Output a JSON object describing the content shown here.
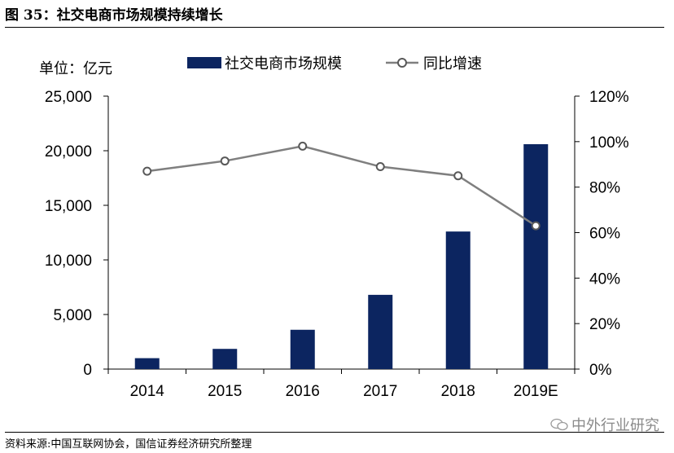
{
  "figure": {
    "title": "图 35：社交电商市场规模持续增长",
    "source": "资料来源:中国互联网协会，国信证券经济研究所整理",
    "watermark": "中外行业研究"
  },
  "chart_data": {
    "type": "bar",
    "title": "",
    "unit_label": "单位：亿元",
    "categories": [
      "2014",
      "2015",
      "2016",
      "2017",
      "2018",
      "2019E"
    ],
    "series": [
      {
        "name": "社交电商市场规模",
        "type": "bar",
        "axis": "left",
        "color": "#0c2560",
        "values": [
          1000,
          1850,
          3600,
          6800,
          12600,
          20600
        ]
      },
      {
        "name": "同比增速",
        "type": "line",
        "axis": "right",
        "color": "#7f7f7f",
        "values": [
          87,
          91.5,
          98,
          89,
          85,
          63
        ]
      }
    ],
    "y_left": {
      "min": 0,
      "max": 25000,
      "ticks": [
        "0",
        "5,000",
        "10,000",
        "15,000",
        "20,000",
        "25,000"
      ],
      "tick_values": [
        0,
        5000,
        10000,
        15000,
        20000,
        25000
      ]
    },
    "y_right": {
      "min": 0,
      "max": 120,
      "ticks": [
        "0%",
        "20%",
        "40%",
        "60%",
        "80%",
        "100%",
        "120%"
      ],
      "tick_values": [
        0,
        20,
        40,
        60,
        80,
        100,
        120
      ]
    },
    "grid": false,
    "legend_position": "top"
  }
}
